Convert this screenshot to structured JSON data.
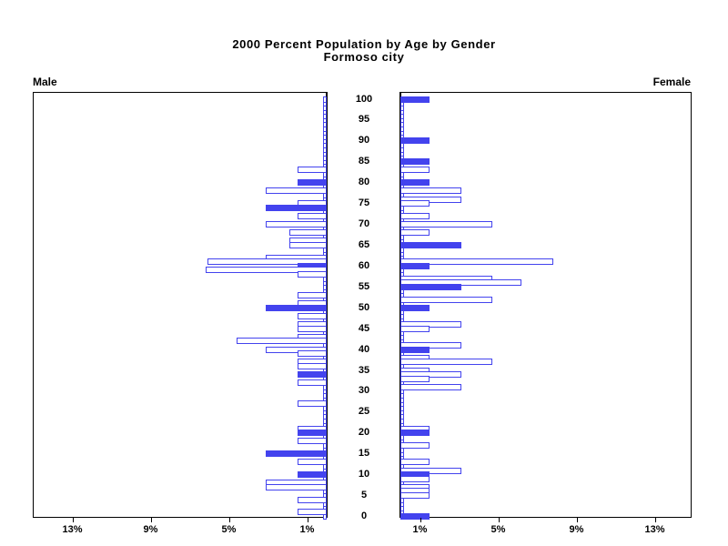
{
  "title": {
    "line1": "2000 Percent Population by Age by Gender",
    "line2": "Formoso city"
  },
  "panel_labels": {
    "male": "Male",
    "female": "Female"
  },
  "axis": {
    "age_tick_labels": [
      "0",
      "5",
      "10",
      "15",
      "20",
      "25",
      "30",
      "35",
      "40",
      "45",
      "50",
      "55",
      "60",
      "65",
      "70",
      "75",
      "80",
      "85",
      "90",
      "95",
      "100"
    ],
    "pct_ticks": [
      {
        "label": "1%",
        "value": 1
      },
      {
        "label": "5%",
        "value": 5
      },
      {
        "label": "9%",
        "value": 9
      },
      {
        "label": "13%",
        "value": 13
      }
    ]
  },
  "colors": {
    "bar_blue": "#4343ee",
    "axis_black": "#000000",
    "background": "#ffffff"
  },
  "chart_data": {
    "type": "bar",
    "subtype": "population-pyramid",
    "title": "2000 Percent Population by Age by Gender",
    "subtitle": "Formoso city",
    "unit": "percent",
    "x_tick_values": [
      1,
      5,
      9,
      13
    ],
    "x_range_pct": [
      0,
      15
    ],
    "age_range": [
      0,
      100
    ],
    "age_label_step": 5,
    "legend": "none",
    "series": [
      {
        "name": "Male",
        "side": "left",
        "bars": [
          {
            "age": 83,
            "pct": 1.5,
            "filled": false
          },
          {
            "age": 80,
            "pct": 1.5,
            "filled": true
          },
          {
            "age": 78,
            "pct": 3.1,
            "filled": false
          },
          {
            "age": 75,
            "pct": 1.5,
            "filled": false
          },
          {
            "age": 74,
            "pct": 3.1,
            "filled": true
          },
          {
            "age": 72,
            "pct": 1.5,
            "filled": false
          },
          {
            "age": 70,
            "pct": 3.1,
            "filled": false
          },
          {
            "age": 68,
            "pct": 1.9,
            "filled": false
          },
          {
            "age": 66,
            "pct": 1.9,
            "filled": false
          },
          {
            "age": 65,
            "pct": 1.9,
            "filled": false
          },
          {
            "age": 62,
            "pct": 3.1,
            "filled": false
          },
          {
            "age": 61,
            "pct": 6.1,
            "filled": false
          },
          {
            "age": 60,
            "pct": 1.5,
            "filled": true
          },
          {
            "age": 59,
            "pct": 6.2,
            "filled": false
          },
          {
            "age": 58,
            "pct": 1.5,
            "filled": false
          },
          {
            "age": 53,
            "pct": 1.5,
            "filled": false
          },
          {
            "age": 51,
            "pct": 1.5,
            "filled": false
          },
          {
            "age": 50,
            "pct": 3.1,
            "filled": true
          },
          {
            "age": 48,
            "pct": 1.5,
            "filled": false
          },
          {
            "age": 46,
            "pct": 1.5,
            "filled": false
          },
          {
            "age": 45,
            "pct": 1.5,
            "filled": false
          },
          {
            "age": 43,
            "pct": 1.5,
            "filled": false
          },
          {
            "age": 42,
            "pct": 4.6,
            "filled": false
          },
          {
            "age": 40,
            "pct": 3.1,
            "filled": false
          },
          {
            "age": 39,
            "pct": 1.5,
            "filled": false
          },
          {
            "age": 37,
            "pct": 1.5,
            "filled": false
          },
          {
            "age": 36,
            "pct": 1.5,
            "filled": false
          },
          {
            "age": 34,
            "pct": 1.5,
            "filled": true
          },
          {
            "age": 32,
            "pct": 1.5,
            "filled": false
          },
          {
            "age": 27,
            "pct": 1.5,
            "filled": false
          },
          {
            "age": 21,
            "pct": 1.5,
            "filled": false
          },
          {
            "age": 20,
            "pct": 1.5,
            "filled": true
          },
          {
            "age": 18,
            "pct": 1.5,
            "filled": false
          },
          {
            "age": 15,
            "pct": 3.1,
            "filled": true
          },
          {
            "age": 13,
            "pct": 1.5,
            "filled": false
          },
          {
            "age": 10,
            "pct": 1.5,
            "filled": true
          },
          {
            "age": 8,
            "pct": 3.1,
            "filled": false
          },
          {
            "age": 7,
            "pct": 3.1,
            "filled": false
          },
          {
            "age": 4,
            "pct": 1.5,
            "filled": false
          },
          {
            "age": 1,
            "pct": 1.5,
            "filled": false
          }
        ]
      },
      {
        "name": "Female",
        "side": "right",
        "bars": [
          {
            "age": 100,
            "pct": 1.5,
            "filled": true
          },
          {
            "age": 90,
            "pct": 1.5,
            "filled": true
          },
          {
            "age": 85,
            "pct": 1.5,
            "filled": true
          },
          {
            "age": 83,
            "pct": 1.5,
            "filled": false
          },
          {
            "age": 80,
            "pct": 1.5,
            "filled": true
          },
          {
            "age": 78,
            "pct": 3.1,
            "filled": false
          },
          {
            "age": 76,
            "pct": 3.1,
            "filled": false
          },
          {
            "age": 75,
            "pct": 1.5,
            "filled": false
          },
          {
            "age": 72,
            "pct": 1.5,
            "filled": false
          },
          {
            "age": 70,
            "pct": 4.7,
            "filled": false
          },
          {
            "age": 68,
            "pct": 1.5,
            "filled": false
          },
          {
            "age": 65,
            "pct": 3.1,
            "filled": true
          },
          {
            "age": 61,
            "pct": 7.8,
            "filled": false
          },
          {
            "age": 60,
            "pct": 1.5,
            "filled": true
          },
          {
            "age": 57,
            "pct": 4.7,
            "filled": false
          },
          {
            "age": 56,
            "pct": 6.2,
            "filled": false
          },
          {
            "age": 55,
            "pct": 3.1,
            "filled": true
          },
          {
            "age": 52,
            "pct": 4.7,
            "filled": false
          },
          {
            "age": 50,
            "pct": 1.5,
            "filled": true
          },
          {
            "age": 46,
            "pct": 3.1,
            "filled": false
          },
          {
            "age": 45,
            "pct": 1.5,
            "filled": false
          },
          {
            "age": 41,
            "pct": 3.1,
            "filled": false
          },
          {
            "age": 40,
            "pct": 1.5,
            "filled": true
          },
          {
            "age": 38,
            "pct": 1.5,
            "filled": false
          },
          {
            "age": 37,
            "pct": 4.7,
            "filled": false
          },
          {
            "age": 35,
            "pct": 1.5,
            "filled": false
          },
          {
            "age": 34,
            "pct": 3.1,
            "filled": false
          },
          {
            "age": 33,
            "pct": 1.5,
            "filled": false
          },
          {
            "age": 31,
            "pct": 3.1,
            "filled": false
          },
          {
            "age": 21,
            "pct": 1.5,
            "filled": false
          },
          {
            "age": 20,
            "pct": 1.5,
            "filled": true
          },
          {
            "age": 17,
            "pct": 1.5,
            "filled": false
          },
          {
            "age": 13,
            "pct": 1.5,
            "filled": false
          },
          {
            "age": 11,
            "pct": 3.1,
            "filled": false
          },
          {
            "age": 10,
            "pct": 1.5,
            "filled": true
          },
          {
            "age": 9,
            "pct": 1.5,
            "filled": false
          },
          {
            "age": 7,
            "pct": 1.5,
            "filled": false
          },
          {
            "age": 6,
            "pct": 1.5,
            "filled": false
          },
          {
            "age": 5,
            "pct": 1.5,
            "filled": false
          },
          {
            "age": 0,
            "pct": 1.5,
            "filled": true
          }
        ]
      }
    ]
  }
}
